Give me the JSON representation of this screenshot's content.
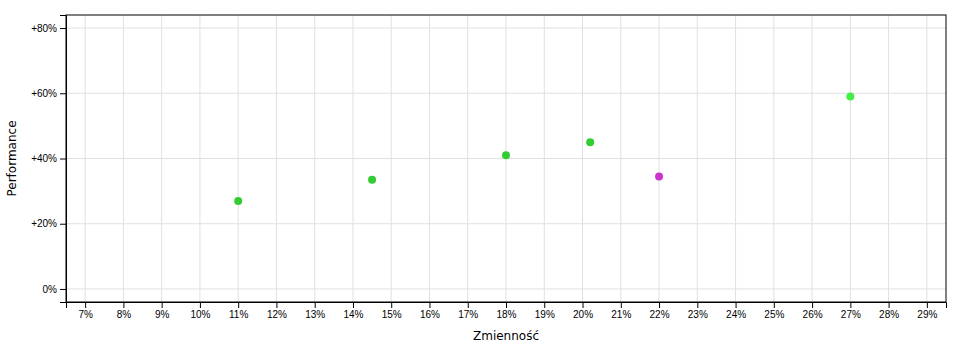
{
  "chart_data": {
    "type": "scatter",
    "xlabel": "Zmienność",
    "ylabel": "Performance",
    "x": [
      11.0,
      14.5,
      18.0,
      20.2,
      22.0,
      27.0
    ],
    "values": [
      27.0,
      33.5,
      41.0,
      45.0,
      34.5,
      59.0
    ],
    "colors": [
      "#33cc33",
      "#33cc33",
      "#33cc33",
      "#33cc33",
      "#cc33cc",
      "#44ee44"
    ],
    "xlim": [
      6.5,
      29.5
    ],
    "ylim": [
      -4,
      84
    ],
    "xticks": [
      {
        "value": 7,
        "label": "7%"
      },
      {
        "value": 8,
        "label": "8%"
      },
      {
        "value": 9,
        "label": "9%"
      },
      {
        "value": 10,
        "label": "10%"
      },
      {
        "value": 11,
        "label": "11%"
      },
      {
        "value": 12,
        "label": "12%"
      },
      {
        "value": 13,
        "label": "13%"
      },
      {
        "value": 14,
        "label": "14%"
      },
      {
        "value": 15,
        "label": "15%"
      },
      {
        "value": 16,
        "label": "16%"
      },
      {
        "value": 17,
        "label": "17%"
      },
      {
        "value": 18,
        "label": "18%"
      },
      {
        "value": 19,
        "label": "19%"
      },
      {
        "value": 20,
        "label": "20%"
      },
      {
        "value": 21,
        "label": "21%"
      },
      {
        "value": 22,
        "label": "22%"
      },
      {
        "value": 23,
        "label": "23%"
      },
      {
        "value": 24,
        "label": "24%"
      },
      {
        "value": 25,
        "label": "25%"
      },
      {
        "value": 26,
        "label": "26%"
      },
      {
        "value": 27,
        "label": "27%"
      },
      {
        "value": 28,
        "label": "28%"
      },
      {
        "value": 29,
        "label": "29%"
      }
    ],
    "yticks": [
      {
        "value": 0,
        "label": "0%"
      },
      {
        "value": 20,
        "label": "+20%"
      },
      {
        "value": 40,
        "label": "+40%"
      },
      {
        "value": 60,
        "label": "+60%"
      },
      {
        "value": 80,
        "label": "+80%"
      }
    ],
    "grid": true
  }
}
